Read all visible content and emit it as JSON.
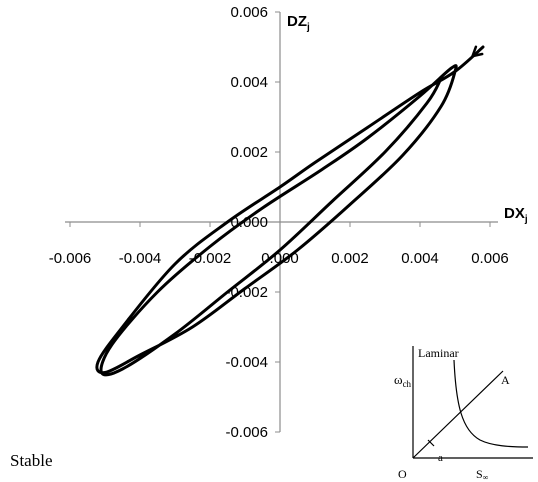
{
  "chart_data": {
    "type": "line",
    "xlabel": "DX",
    "xlabel_sub": "j",
    "ylabel": "DZ",
    "ylabel_sub": "j",
    "xlim": [
      -0.006,
      0.006
    ],
    "ylim": [
      -0.006,
      0.006
    ],
    "x_ticks": [
      "-0.006",
      "-0.004",
      "-0.002",
      "0.000",
      "0.002",
      "0.004",
      "0.006"
    ],
    "y_ticks": [
      "0.006",
      "0.004",
      "0.002",
      "0.000",
      "-0.002",
      "-0.004",
      "-0.006"
    ],
    "grid": false,
    "annotations": [
      "Stable"
    ],
    "series": [
      {
        "x": [
          0.0058,
          0.005,
          0.004,
          0.0025,
          0.001,
          0.0,
          -0.0015,
          -0.003,
          -0.0045,
          -0.0052,
          -0.005,
          -0.004,
          -0.0025,
          -0.001,
          0.0005,
          0.002,
          0.0035,
          0.0046,
          0.005,
          0.0049,
          0.004,
          0.0025,
          0.0012,
          -0.0005,
          -0.002,
          -0.0035,
          -0.0048,
          -0.0051,
          -0.0045,
          -0.003,
          -0.0015,
          0.0,
          0.0015,
          0.003,
          0.0042,
          0.0046
        ],
        "y": [
          0.005,
          0.0043,
          0.0037,
          0.0027,
          0.0017,
          0.001,
          0.0,
          -0.0012,
          -0.003,
          -0.004,
          -0.0043,
          -0.0038,
          -0.003,
          -0.0019,
          -0.0008,
          0.0005,
          0.0019,
          0.0033,
          0.0043,
          0.0044,
          0.0036,
          0.0024,
          0.0015,
          0.0004,
          -0.0007,
          -0.002,
          -0.0035,
          -0.0043,
          -0.0042,
          -0.0032,
          -0.002,
          -0.0008,
          0.0006,
          0.002,
          0.0034,
          0.0041
        ]
      }
    ]
  },
  "inset": {
    "y_label": "ω",
    "y_sub": "ch",
    "x_label": "S",
    "x_sub": "∞",
    "origin_label": "O",
    "curve_label": "Laminar",
    "line_label": "A",
    "point_label": "a"
  }
}
